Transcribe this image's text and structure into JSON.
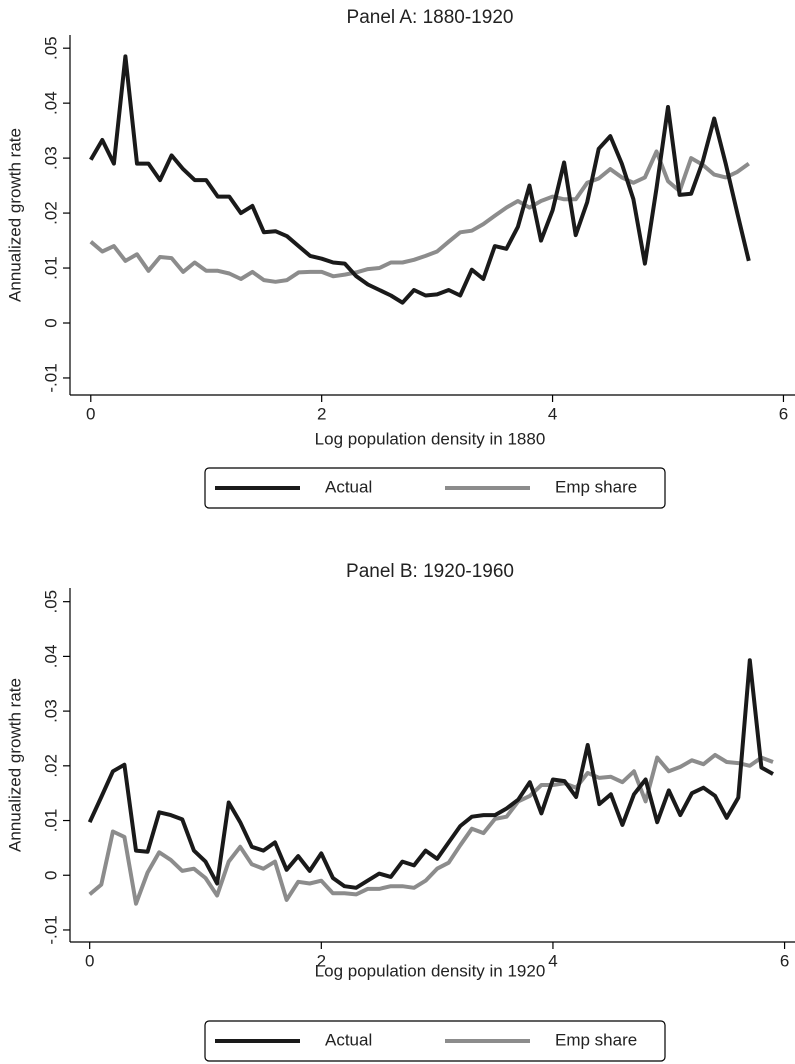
{
  "chart_data": [
    {
      "type": "line",
      "title": "Panel A: 1880-1920",
      "xlabel": "Log population density in 1880",
      "ylabel": "Annualized growth rate",
      "x": [
        0,
        0.1,
        0.2,
        0.3,
        0.4,
        0.5,
        0.6,
        0.7,
        0.8,
        0.9,
        1.0,
        1.1,
        1.2,
        1.3,
        1.4,
        1.5,
        1.6,
        1.7,
        1.8,
        1.9,
        2.0,
        2.1,
        2.2,
        2.3,
        2.4,
        2.5,
        2.6,
        2.7,
        2.8,
        2.9,
        3.0,
        3.1,
        3.2,
        3.3,
        3.4,
        3.5,
        3.6,
        3.7,
        3.8,
        3.9,
        4.0,
        4.1,
        4.2,
        4.3,
        4.4,
        4.5,
        4.6,
        4.7,
        4.8,
        4.9,
        5.0,
        5.1,
        5.2,
        5.3,
        5.4,
        5.5,
        5.6,
        5.7
      ],
      "series": [
        {
          "name": "Actual",
          "color": "#1a1a1a",
          "values": [
            0.0297,
            0.0333,
            0.029,
            0.0485,
            0.029,
            0.029,
            0.026,
            0.0305,
            0.028,
            0.026,
            0.026,
            0.023,
            0.023,
            0.02,
            0.0213,
            0.0165,
            0.0167,
            0.0158,
            0.014,
            0.0122,
            0.0117,
            0.011,
            0.0108,
            0.0085,
            0.007,
            0.006,
            0.005,
            0.0037,
            0.006,
            0.005,
            0.0052,
            0.006,
            0.005,
            0.0097,
            0.008,
            0.014,
            0.0135,
            0.0175,
            0.025,
            0.015,
            0.0205,
            0.0292,
            0.016,
            0.022,
            0.0317,
            0.034,
            0.029,
            0.0225,
            0.0108,
            0.0245,
            0.0393,
            0.0233,
            0.0235,
            0.0293,
            0.0372,
            0.029,
            0.02,
            0.0113
          ]
        },
        {
          "name": "Emp share",
          "color": "#8c8c8c",
          "values": [
            0.0148,
            0.013,
            0.014,
            0.0113,
            0.0125,
            0.0095,
            0.012,
            0.0118,
            0.0093,
            0.011,
            0.0095,
            0.0095,
            0.009,
            0.008,
            0.0093,
            0.0078,
            0.0075,
            0.0078,
            0.0092,
            0.0093,
            0.0093,
            0.0085,
            0.0088,
            0.0092,
            0.0098,
            0.01,
            0.011,
            0.011,
            0.0115,
            0.0122,
            0.013,
            0.0148,
            0.0165,
            0.0168,
            0.018,
            0.0195,
            0.021,
            0.0222,
            0.021,
            0.0222,
            0.023,
            0.0225,
            0.0225,
            0.0255,
            0.0263,
            0.028,
            0.0265,
            0.0255,
            0.0265,
            0.0312,
            0.0258,
            0.024,
            0.03,
            0.0288,
            0.027,
            0.0265,
            0.0275,
            0.029
          ]
        }
      ],
      "xlim": [
        -0.18,
        6.1
      ],
      "xticks": [
        0,
        2,
        4,
        6
      ],
      "ylim": [
        -0.0131,
        0.0524
      ],
      "yticks": [
        {
          "value": -0.01,
          "label": "-.01"
        },
        0,
        {
          "value": 0.01,
          "label": ".01"
        },
        {
          "value": 0.02,
          "label": ".02"
        },
        {
          "value": 0.03,
          "label": ".03"
        },
        {
          "value": 0.04,
          "label": ".04"
        },
        {
          "value": 0.05,
          "label": ".05"
        }
      ],
      "legend": "bottom"
    },
    {
      "type": "line",
      "title": "Panel B: 1920-1960",
      "xlabel": "Log population density in 1920",
      "ylabel": "Annualized growth rate",
      "x": [
        0,
        0.1,
        0.2,
        0.3,
        0.4,
        0.5,
        0.6,
        0.7,
        0.8,
        0.9,
        1.0,
        1.1,
        1.2,
        1.3,
        1.4,
        1.5,
        1.6,
        1.7,
        1.8,
        1.9,
        2.0,
        2.1,
        2.2,
        2.3,
        2.4,
        2.5,
        2.6,
        2.7,
        2.8,
        2.9,
        3.0,
        3.1,
        3.2,
        3.3,
        3.4,
        3.5,
        3.6,
        3.7,
        3.8,
        3.9,
        4.0,
        4.1,
        4.2,
        4.3,
        4.4,
        4.5,
        4.6,
        4.7,
        4.8,
        4.9,
        5.0,
        5.1,
        5.2,
        5.3,
        5.4,
        5.5,
        5.6,
        5.7,
        5.8,
        5.9
      ],
      "series": [
        {
          "name": "Actual",
          "color": "#1a1a1a",
          "values": [
            0.0097,
            0.0143,
            0.019,
            0.0202,
            0.0045,
            0.0043,
            0.0115,
            0.011,
            0.0102,
            0.0045,
            0.0025,
            -0.0015,
            0.0133,
            0.0097,
            0.0052,
            0.0045,
            0.006,
            0.001,
            0.0035,
            0.0008,
            0.004,
            -0.0005,
            -0.002,
            -0.0023,
            -0.001,
            0.0003,
            -0.0003,
            0.0025,
            0.0018,
            0.0045,
            0.003,
            0.006,
            0.009,
            0.0107,
            0.011,
            0.011,
            0.0122,
            0.0138,
            0.017,
            0.0113,
            0.0175,
            0.0172,
            0.0143,
            0.0238,
            0.013,
            0.0148,
            0.0092,
            0.0148,
            0.0175,
            0.0097,
            0.0155,
            0.011,
            0.015,
            0.016,
            0.0145,
            0.0105,
            0.0142,
            0.0393,
            0.0197,
            0.0185
          ]
        },
        {
          "name": "Emp share",
          "color": "#8c8c8c",
          "values": [
            -0.0035,
            -0.0017,
            0.008,
            0.007,
            -0.0052,
            0.0005,
            0.0042,
            0.0028,
            0.0008,
            0.0012,
            -0.0005,
            -0.0037,
            0.0025,
            0.0052,
            0.002,
            0.0012,
            0.0025,
            -0.0045,
            -0.0012,
            -0.0015,
            -0.001,
            -0.0033,
            -0.0033,
            -0.0035,
            -0.0025,
            -0.0025,
            -0.002,
            -0.002,
            -0.0023,
            -0.001,
            0.0012,
            0.0023,
            0.0055,
            0.0085,
            0.0077,
            0.0103,
            0.0107,
            0.0135,
            0.0145,
            0.0165,
            0.0165,
            0.0168,
            0.016,
            0.0187,
            0.0178,
            0.018,
            0.017,
            0.019,
            0.0135,
            0.0215,
            0.019,
            0.0198,
            0.021,
            0.0203,
            0.022,
            0.0207,
            0.0205,
            0.02,
            0.0215,
            0.0207
          ]
        }
      ],
      "xlim": [
        -0.17,
        6.09
      ],
      "xticks": [
        0,
        2,
        4,
        6
      ],
      "ylim": [
        -0.0122,
        0.0525
      ],
      "yticks": [
        {
          "value": -0.01,
          "label": "-.01"
        },
        0,
        {
          "value": 0.01,
          "label": ".01"
        },
        {
          "value": 0.02,
          "label": ".02"
        },
        {
          "value": 0.03,
          "label": ".03"
        },
        {
          "value": 0.04,
          "label": ".04"
        },
        {
          "value": 0.05,
          "label": ".05"
        }
      ],
      "legend": "bottom"
    }
  ]
}
